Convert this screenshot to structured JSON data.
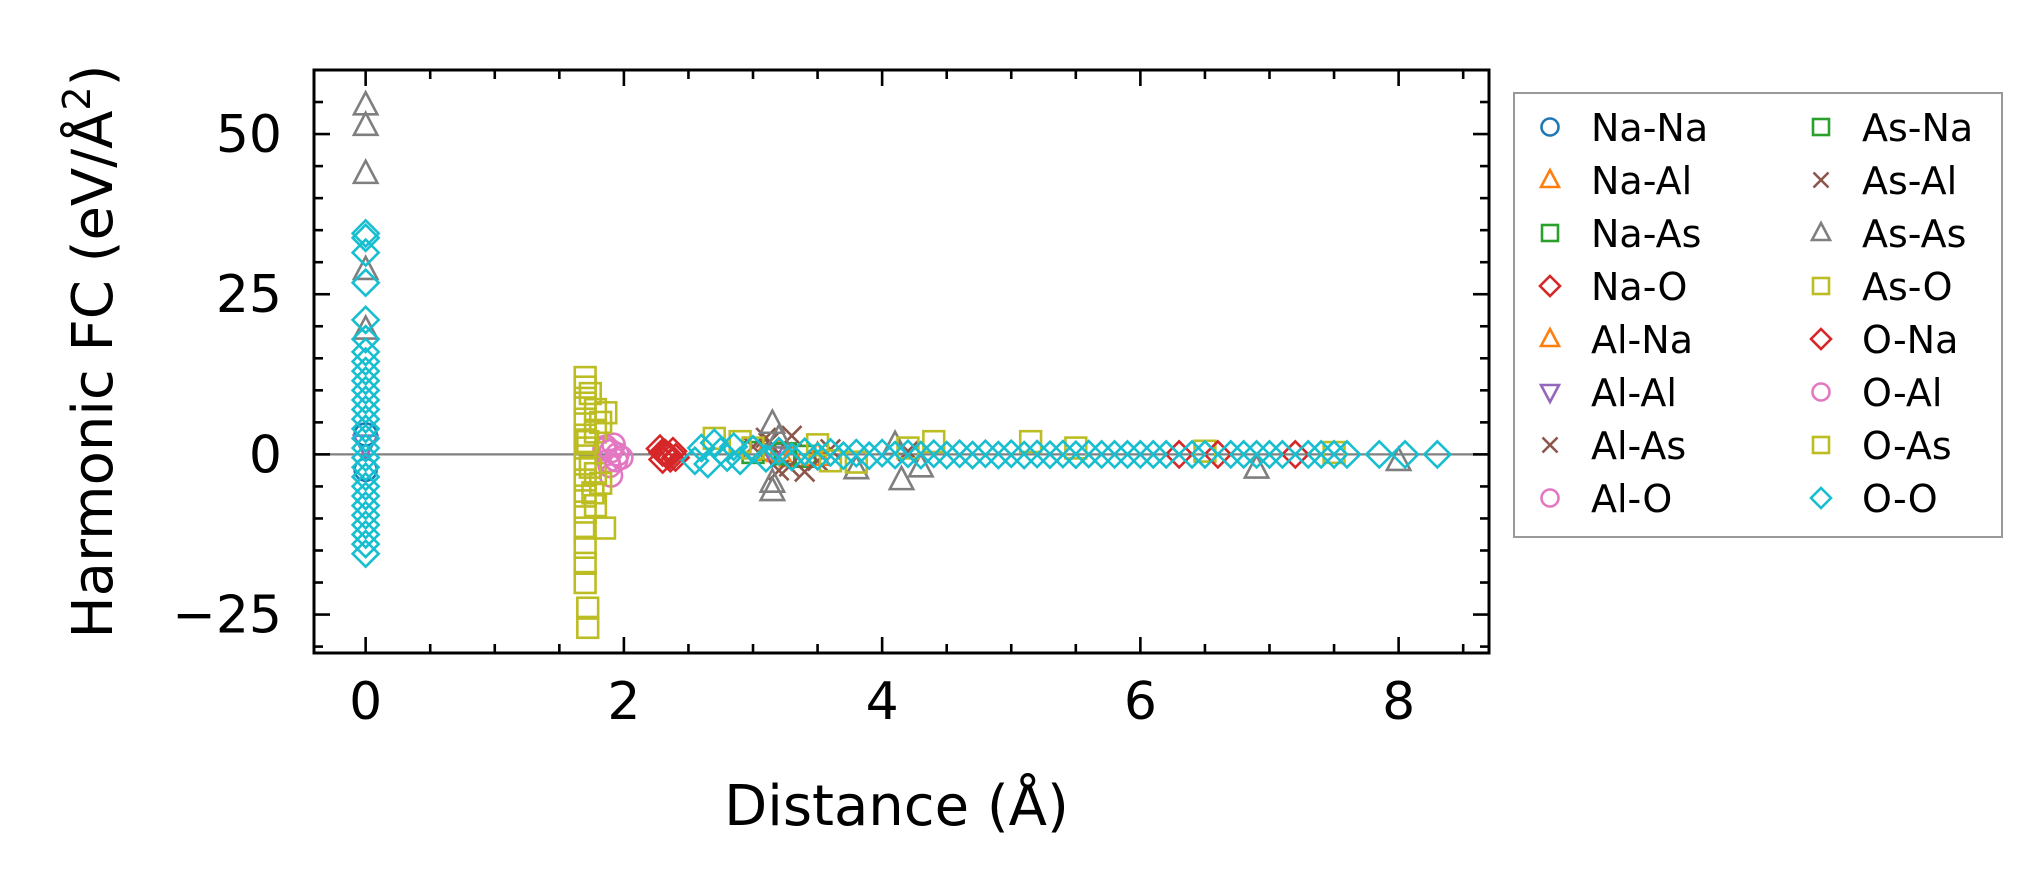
{
  "chart_data": {
    "type": "scatter",
    "xlabel": "Distance (Å)",
    "ylabel": {
      "text": "Harmonic FC (eV/Å",
      "superscript": "2",
      "suffix": ")"
    },
    "xlim": [
      -0.4,
      8.7
    ],
    "ylim": [
      -31,
      60
    ],
    "xticks": [
      0,
      2,
      4,
      6,
      8
    ],
    "xtick_labels": [
      "0",
      "2",
      "4",
      "6",
      "8"
    ],
    "yticks": [
      -25,
      0,
      25,
      50
    ],
    "ytick_labels": [
      "−25",
      "0",
      "25",
      "50"
    ],
    "hline": 0,
    "legend_position": "right, outside",
    "series": [
      {
        "name": "Na-Na",
        "marker": "circle",
        "color": "#1f77b4",
        "points": [
          [
            0,
            3.1
          ],
          [
            0,
            -2.4
          ]
        ]
      },
      {
        "name": "Na-Al",
        "marker": "triangle-up",
        "color": "#ff7f0e",
        "points": [
          [
            3.1,
            0.6
          ],
          [
            3.3,
            -0.4
          ]
        ]
      },
      {
        "name": "Na-As",
        "marker": "square",
        "color": "#2ca02c",
        "points": [
          [
            3.0,
            0.3
          ],
          [
            3.4,
            -0.3
          ]
        ]
      },
      {
        "name": "Na-O",
        "marker": "diamond",
        "color": "#d62728",
        "points": [
          [
            2.28,
            0.9
          ],
          [
            2.3,
            -0.8
          ],
          [
            2.32,
            0.2
          ],
          [
            2.35,
            -0.2
          ],
          [
            2.38,
            0.5
          ],
          [
            2.4,
            -0.5
          ],
          [
            2.33,
            0.0
          ],
          [
            6.3,
            0.0
          ],
          [
            7.2,
            0.0
          ]
        ]
      },
      {
        "name": "Al-Na",
        "marker": "triangle-up",
        "color": "#ff7f0e",
        "points": [
          [
            3.2,
            0.4
          ],
          [
            3.5,
            -0.2
          ]
        ]
      },
      {
        "name": "Al-Al",
        "marker": "triangle-down",
        "color": "#9467bd",
        "points": [
          [
            0,
            1.5
          ],
          [
            3.15,
            0.2
          ]
        ]
      },
      {
        "name": "Al-As",
        "marker": "x",
        "color": "#8c564b",
        "points": [
          [
            3.1,
            2.6
          ],
          [
            3.2,
            -2.5
          ],
          [
            3.3,
            2.9
          ],
          [
            3.4,
            -2.7
          ],
          [
            3.0,
            1.2
          ],
          [
            3.5,
            -1.0
          ],
          [
            3.6,
            0.8
          ],
          [
            4.2,
            0.5
          ]
        ]
      },
      {
        "name": "Al-O",
        "marker": "circle",
        "color": "#e377c2",
        "points": [
          [
            1.85,
            0.8
          ],
          [
            1.88,
            -1.0
          ],
          [
            1.9,
            -3.3
          ],
          [
            1.92,
            1.5
          ],
          [
            1.95,
            0.0
          ],
          [
            1.98,
            -0.5
          ],
          [
            1.86,
            1.2
          ],
          [
            1.89,
            -1.8
          ]
        ]
      },
      {
        "name": "As-Na",
        "marker": "square",
        "color": "#2ca02c",
        "points": [
          [
            3.25,
            0.1
          ]
        ]
      },
      {
        "name": "As-Al",
        "marker": "x",
        "color": "#8c564b",
        "points": [
          [
            3.12,
            1.8
          ],
          [
            3.28,
            -1.9
          ]
        ]
      },
      {
        "name": "As-As",
        "marker": "triangle-up",
        "color": "#7f7f7f",
        "points": [
          [
            0,
            54.5
          ],
          [
            0,
            51.3
          ],
          [
            0,
            43.8
          ],
          [
            0,
            28.8
          ],
          [
            0,
            19.5
          ],
          [
            3.15,
            4.8
          ],
          [
            3.15,
            -5.7
          ],
          [
            3.15,
            -4.4
          ],
          [
            3.2,
            2.5
          ],
          [
            3.8,
            -2.3
          ],
          [
            4.15,
            -4.0
          ],
          [
            4.1,
            1.5
          ],
          [
            4.3,
            -2.0
          ],
          [
            6.9,
            -2.2
          ],
          [
            8.0,
            -1.0
          ]
        ]
      },
      {
        "name": "As-O",
        "marker": "square",
        "color": "#bcbd22",
        "points": [
          [
            1.7,
            12.0
          ],
          [
            1.7,
            10.5
          ],
          [
            1.7,
            8.0
          ],
          [
            1.7,
            5.5
          ],
          [
            1.7,
            3.0
          ],
          [
            1.7,
            1.0
          ],
          [
            1.7,
            -1.5
          ],
          [
            1.7,
            -4.0
          ],
          [
            1.7,
            -6.5
          ],
          [
            1.7,
            -9.0
          ],
          [
            1.7,
            -11.5
          ],
          [
            1.7,
            -14.5
          ],
          [
            1.7,
            -17.0
          ],
          [
            1.7,
            -20.0
          ],
          [
            1.72,
            -24.0
          ],
          [
            1.72,
            -27.0
          ],
          [
            1.78,
            7.0
          ],
          [
            1.78,
            3.5
          ],
          [
            1.78,
            -3.0
          ],
          [
            1.78,
            -8.0
          ],
          [
            1.82,
            5.0
          ],
          [
            1.82,
            -4.5
          ],
          [
            1.85,
            -11.5
          ],
          [
            1.86,
            6.5
          ],
          [
            1.74,
            9.5
          ],
          [
            1.74,
            -2.0
          ],
          [
            2.7,
            2.5
          ],
          [
            2.9,
            2.0
          ],
          [
            3.5,
            1.5
          ],
          [
            3.6,
            -1.0
          ],
          [
            4.2,
            1.0
          ],
          [
            4.4,
            2.0
          ],
          [
            5.15,
            2.0
          ],
          [
            5.5,
            1.0
          ],
          [
            6.5,
            0.5
          ],
          [
            7.5,
            0.3
          ]
        ]
      },
      {
        "name": "O-Na",
        "marker": "diamond",
        "color": "#d62728",
        "points": [
          [
            2.3,
            0.3
          ],
          [
            2.36,
            -0.6
          ],
          [
            6.6,
            0.0
          ]
        ]
      },
      {
        "name": "O-Al",
        "marker": "circle",
        "color": "#e377c2",
        "points": [
          [
            1.9,
            0.5
          ],
          [
            1.94,
            -0.9
          ]
        ]
      },
      {
        "name": "O-As",
        "marker": "square",
        "color": "#bcbd22",
        "points": [
          [
            1.72,
            2.0
          ],
          [
            1.76,
            -6.0
          ],
          [
            3.0,
            1.0
          ],
          [
            3.8,
            -1.2
          ]
        ]
      },
      {
        "name": "O-O",
        "marker": "diamond",
        "color": "#17becf",
        "points": [
          [
            0,
            34.5
          ],
          [
            0,
            33.8
          ],
          [
            0,
            31.5
          ],
          [
            0,
            26.8
          ],
          [
            0,
            21.0
          ],
          [
            0,
            18.0
          ],
          [
            0,
            16.0
          ],
          [
            0,
            14.5
          ],
          [
            0,
            13.0
          ],
          [
            0,
            11.5
          ],
          [
            0,
            10.0
          ],
          [
            0,
            8.5
          ],
          [
            0,
            7.0
          ],
          [
            0,
            5.5
          ],
          [
            0,
            4.0
          ],
          [
            0,
            2.5
          ],
          [
            0,
            1.0
          ],
          [
            0,
            -0.5
          ],
          [
            0,
            -2.0
          ],
          [
            0,
            -3.5
          ],
          [
            0,
            -5.0
          ],
          [
            0,
            -6.5
          ],
          [
            0,
            -8.0
          ],
          [
            0,
            -9.5
          ],
          [
            0,
            -11.0
          ],
          [
            0,
            -12.5
          ],
          [
            0,
            -14.0
          ],
          [
            0,
            -15.5
          ],
          [
            2.55,
            -1.0
          ],
          [
            2.6,
            1.0
          ],
          [
            2.65,
            -1.5
          ],
          [
            2.7,
            1.8
          ],
          [
            2.75,
            0.5
          ],
          [
            2.8,
            -0.5
          ],
          [
            2.85,
            1.2
          ],
          [
            2.9,
            -1.0
          ],
          [
            3.0,
            0.8
          ],
          [
            3.1,
            -0.6
          ],
          [
            3.2,
            0.5
          ],
          [
            3.3,
            -0.4
          ],
          [
            3.4,
            0.4
          ],
          [
            3.5,
            -0.3
          ],
          [
            3.6,
            0.3
          ],
          [
            3.7,
            -0.2
          ],
          [
            3.8,
            0.2
          ],
          [
            3.9,
            -0.2
          ],
          [
            4.0,
            0.2
          ],
          [
            4.1,
            -0.1
          ],
          [
            4.2,
            0.1
          ],
          [
            4.3,
            -0.1
          ],
          [
            4.4,
            0.1
          ],
          [
            4.5,
            -0.1
          ],
          [
            4.6,
            0.1
          ],
          [
            4.7,
            -0.1
          ],
          [
            4.8,
            0.1
          ],
          [
            4.9,
            -0.1
          ],
          [
            5.0,
            0.1
          ],
          [
            5.1,
            -0.1
          ],
          [
            5.2,
            0.05
          ],
          [
            5.3,
            -0.05
          ],
          [
            5.4,
            0.05
          ],
          [
            5.5,
            -0.05
          ],
          [
            5.6,
            0.05
          ],
          [
            5.7,
            0.0
          ],
          [
            5.8,
            0.0
          ],
          [
            5.9,
            0.0
          ],
          [
            6.0,
            0.0
          ],
          [
            6.1,
            0.0
          ],
          [
            6.2,
            0.0
          ],
          [
            6.4,
            0.0
          ],
          [
            6.5,
            0.0
          ],
          [
            6.7,
            0.0
          ],
          [
            6.8,
            0.0
          ],
          [
            6.9,
            0.0
          ],
          [
            7.0,
            0.0
          ],
          [
            7.1,
            0.0
          ],
          [
            7.3,
            0.0
          ],
          [
            7.4,
            0.0
          ],
          [
            7.5,
            0.0
          ],
          [
            7.6,
            0.0
          ],
          [
            7.85,
            0.0
          ],
          [
            8.05,
            0.0
          ],
          [
            8.3,
            0.0
          ]
        ]
      }
    ]
  }
}
